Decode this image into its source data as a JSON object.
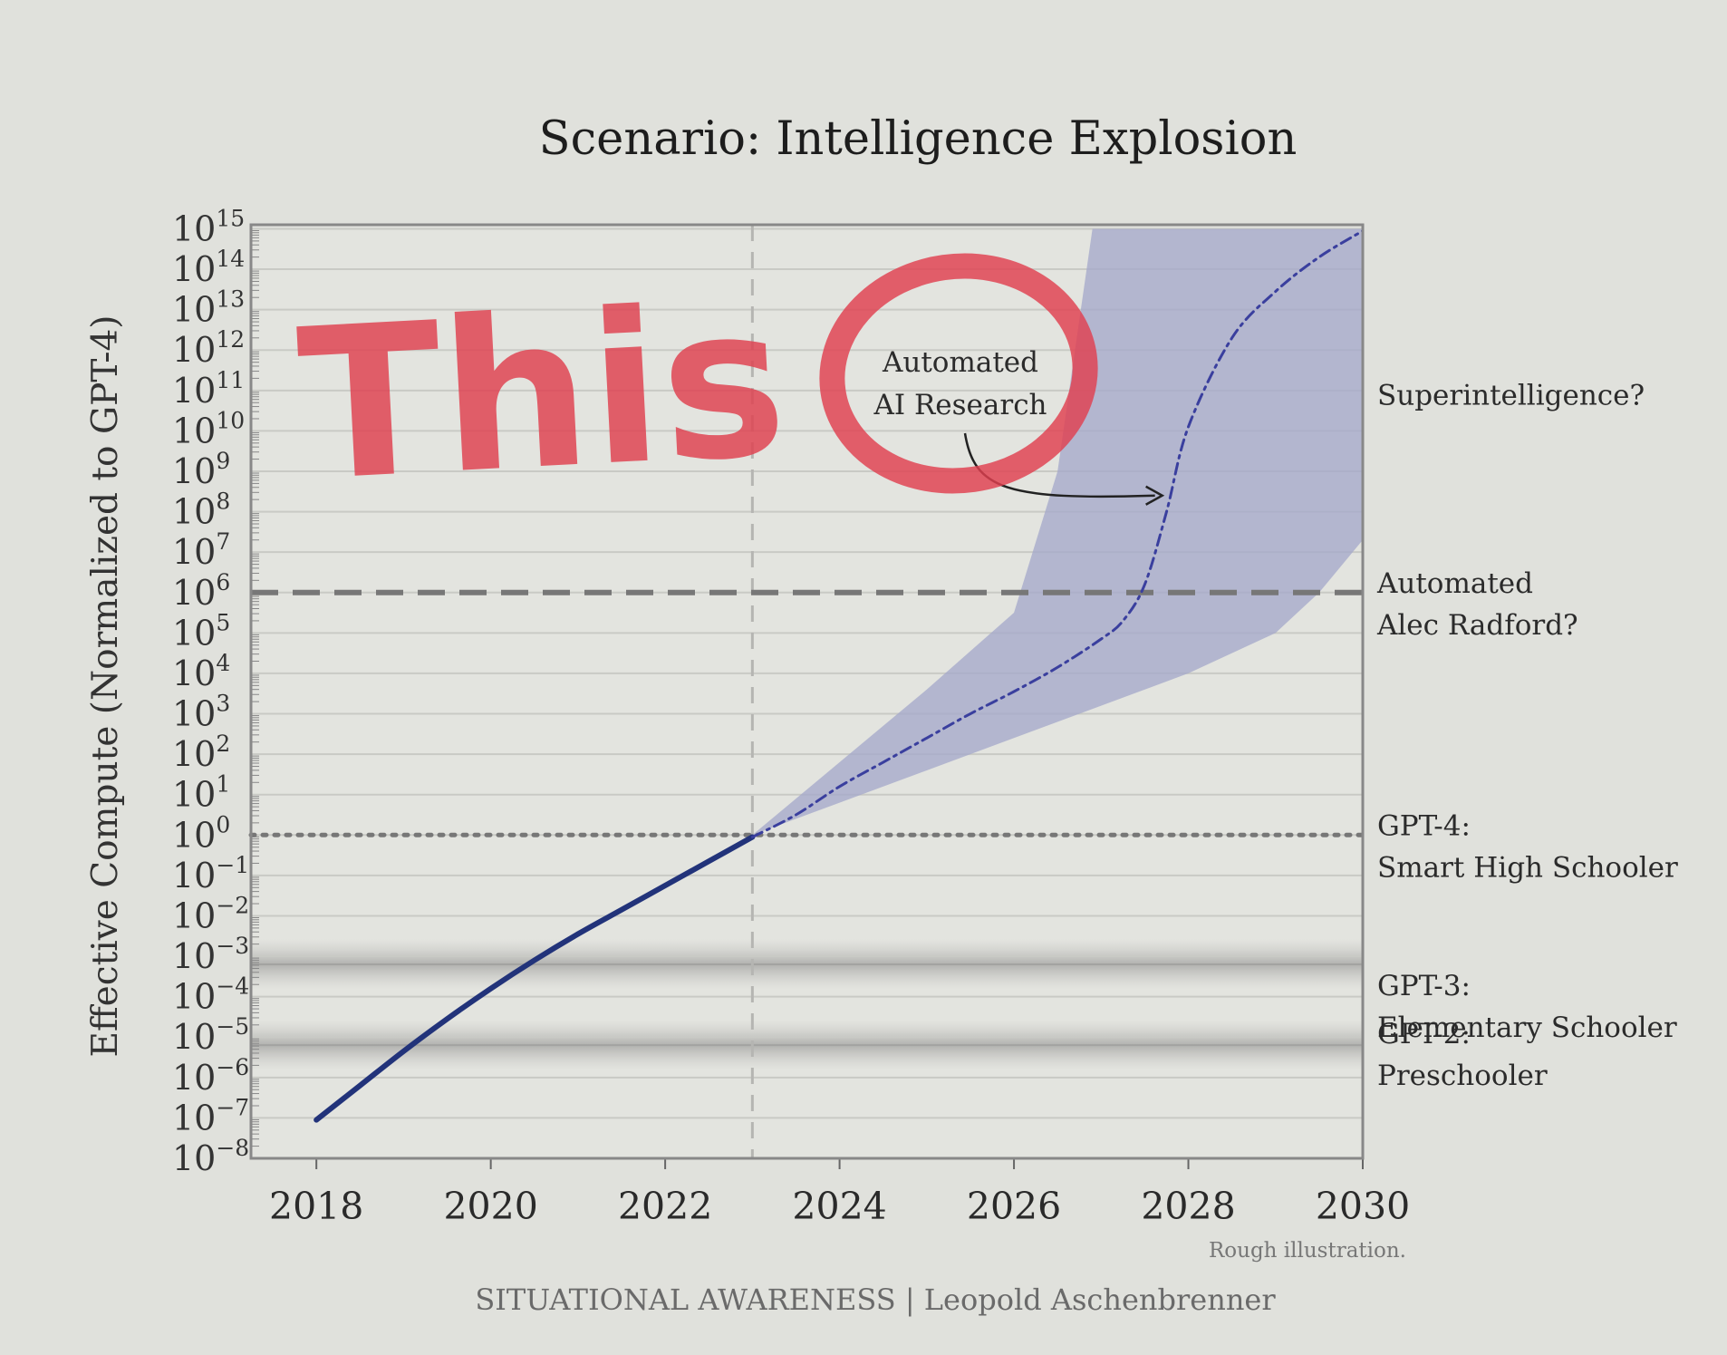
{
  "chart_data": {
    "type": "line",
    "title": "Scenario: Intelligence Explosion",
    "ylabel": "Effective Compute (Normalized to GPT-4)",
    "xlabel": "",
    "y_scale": "log10",
    "ylim_exponent": [
      -8,
      15
    ],
    "xlim": [
      2017.25,
      2030
    ],
    "xticks": [
      2018,
      2020,
      2022,
      2024,
      2026,
      2028,
      2030
    ],
    "ytick_exponents": [
      15,
      14,
      13,
      12,
      11,
      10,
      9,
      8,
      7,
      6,
      5,
      4,
      3,
      2,
      1,
      0,
      -1,
      -2,
      -3,
      -4,
      -5,
      -6,
      -7,
      -8
    ],
    "grid": true,
    "series": [
      {
        "style": "solid",
        "color": "#22337a",
        "x": [
          2018,
          2018.5,
          2019,
          2019.5,
          2020,
          2020.5,
          2021,
          2021.5,
          2022,
          2022.5,
          2023
        ],
        "log10_y": [
          -7.05,
          -6.2,
          -5.35,
          -4.55,
          -3.8,
          -3.1,
          -2.45,
          -1.85,
          -1.25,
          -0.65,
          -0.05
        ]
      },
      {
        "style": "dash-dot",
        "color": "#3a3f9e",
        "x": [
          2023,
          2023.5,
          2024,
          2024.5,
          2025,
          2025.5,
          2026,
          2026.5,
          2027,
          2027.25,
          2027.5,
          2027.75,
          2028,
          2028.5,
          2029,
          2029.5,
          2030
        ],
        "log10_y": [
          -0.05,
          0.5,
          1.2,
          1.8,
          2.4,
          3.0,
          3.55,
          4.15,
          4.85,
          5.3,
          6.2,
          8.0,
          10.1,
          12.3,
          13.45,
          14.3,
          14.95
        ]
      }
    ],
    "band": {
      "color": "#a5a9cb",
      "upper": {
        "x": [
          2023,
          2024,
          2025,
          2026,
          2026.5,
          2026.9,
          2030
        ],
        "log10_y": [
          0,
          1.8,
          3.6,
          5.5,
          9.0,
          15.0,
          15.0
        ]
      },
      "lower": {
        "x": [
          2023,
          2024,
          2025,
          2026,
          2027,
          2028,
          2029,
          2029.5,
          2030
        ],
        "log10_y": [
          0,
          0.8,
          1.6,
          2.4,
          3.2,
          4.0,
          5.0,
          6.0,
          7.3
        ]
      }
    },
    "vline_x": 2023,
    "reference_lines": [
      {
        "log10_y": 6,
        "style": "dashed",
        "label_lines": [
          "Automated",
          "Alec Radford?"
        ]
      },
      {
        "log10_y": 0,
        "style": "dotted",
        "label_lines": [
          "GPT-4:",
          "Smart High Schooler"
        ]
      }
    ],
    "shaded_bands": [
      {
        "log10_y": -3.2,
        "label_lines": [
          "GPT-3:",
          "Elementary Schooler"
        ]
      },
      {
        "log10_y": -5.2,
        "label_lines": [
          "GPT-2:",
          "Preschooler"
        ]
      }
    ],
    "level_labels": [
      {
        "log10_y": 10.9,
        "label_lines": [
          "Superintelligence?"
        ]
      }
    ],
    "annotation": {
      "label_lines": [
        "Automated",
        "AI Research"
      ],
      "arrow_to": {
        "x": 2027.7,
        "log10_y": 8.4
      }
    },
    "note": "Rough illustration.",
    "source": "SITUATIONAL AWARENESS | Leopold Aschenbrenner"
  },
  "overlay": {
    "scribble_text": "This",
    "scribble_color": "#e0404f"
  }
}
